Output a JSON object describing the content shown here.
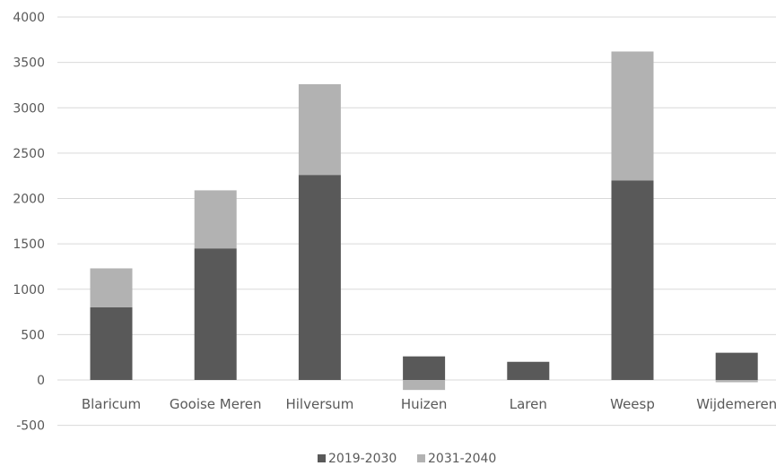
{
  "chart_data": {
    "type": "bar",
    "stacked": true,
    "categories": [
      "Blaricum",
      "Gooise Meren",
      "Hilversum",
      "Huizen",
      "Laren",
      "Weesp",
      "Wijdemeren"
    ],
    "series": [
      {
        "name": "2019-2030",
        "values": [
          800,
          1450,
          2260,
          260,
          200,
          2200,
          300
        ]
      },
      {
        "name": "2031-2040",
        "values": [
          430,
          640,
          1000,
          -110,
          0,
          1420,
          -25
        ]
      }
    ],
    "ylim": [
      -500,
      4000
    ],
    "yticks": [
      -500,
      0,
      500,
      1000,
      1500,
      2000,
      2500,
      3000,
      3500,
      4000
    ],
    "grid": true,
    "legend": "bottom",
    "colors": {
      "2019-2030": "#595959",
      "2031-2040": "#b2b2b2",
      "grid": "#d9d9d9",
      "text": "#595959"
    }
  }
}
